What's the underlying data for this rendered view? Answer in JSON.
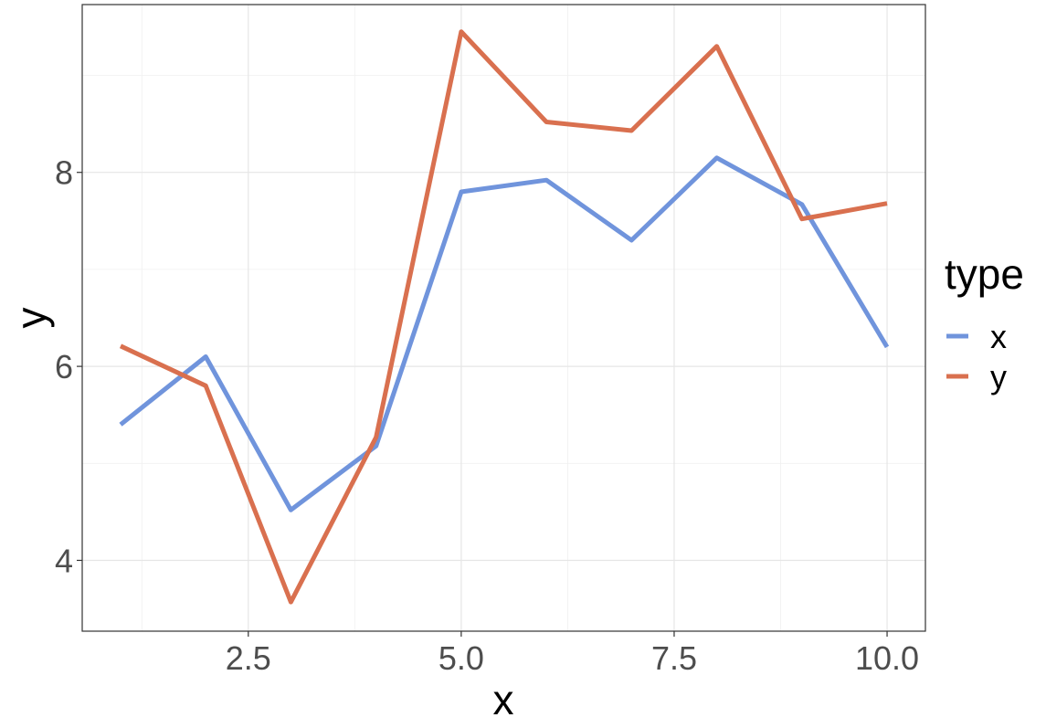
{
  "chart_data": {
    "type": "line",
    "xlabel": "x",
    "ylabel": "y",
    "xlim": [
      0.55,
      10.45
    ],
    "ylim": [
      3.27,
      9.73
    ],
    "x_ticks": [
      2.5,
      5.0,
      7.5,
      10.0
    ],
    "x_tick_labels": [
      "2.5",
      "5.0",
      "7.5",
      "10.0"
    ],
    "y_ticks": [
      4,
      6,
      8
    ],
    "y_tick_labels": [
      "4",
      "6",
      "8"
    ],
    "grid": true,
    "legend": {
      "title": "type",
      "placement": "right"
    },
    "x": [
      1,
      2,
      3,
      4,
      5,
      6,
      7,
      8,
      9,
      10
    ],
    "series": [
      {
        "name": "x",
        "color": "#7094dc",
        "values": [
          5.4,
          6.1,
          4.52,
          5.18,
          7.8,
          7.92,
          7.3,
          8.15,
          7.67,
          6.2
        ]
      },
      {
        "name": "y",
        "color": "#d9704f",
        "values": [
          6.21,
          5.8,
          3.57,
          5.27,
          9.45,
          8.52,
          8.43,
          9.3,
          7.52,
          7.68
        ]
      }
    ]
  }
}
